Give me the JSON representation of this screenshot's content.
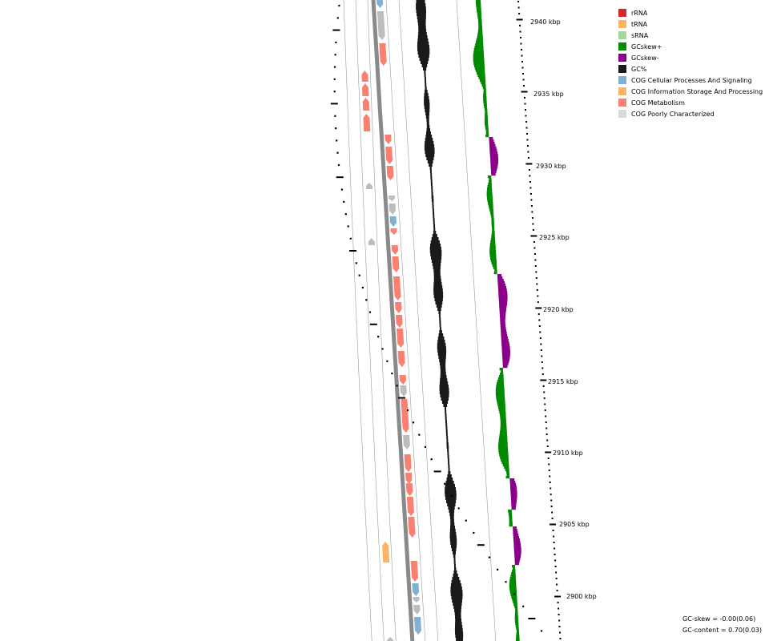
{
  "kbp_labels": [
    "2940 kbp",
    "2935 kbp",
    "2930 kbp",
    "2925 kbp",
    "2920 kbp",
    "2915 kbp",
    "2910 kbp",
    "2905 kbp",
    "2900 kbp"
  ],
  "legend": [
    {
      "label": "rRNA",
      "color": "#d62728"
    },
    {
      "label": "tRNA",
      "color": "#fdb462"
    },
    {
      "label": "sRNA",
      "color": "#a1d99b"
    },
    {
      "label": "GCskew+",
      "color": "#008b00"
    },
    {
      "label": "GCskew-",
      "color": "#8b008b"
    },
    {
      "label": "GC%",
      "color": "#1a1a1a"
    },
    {
      "label": "COG Cellular Processes And Signaling",
      "color": "#80b1d3"
    },
    {
      "label": "COG Information Storage And Processing",
      "color": "#fdb462"
    },
    {
      "label": "COG Metabolism",
      "color": "#fa8072"
    },
    {
      "label": "COG Poorly Characterized",
      "color": "#d9d9d9"
    }
  ],
  "stats": {
    "gc_skew": "GC-skew = -0.00(0.06)",
    "gc_content": "GC-content = 0.70(0.03)"
  }
}
